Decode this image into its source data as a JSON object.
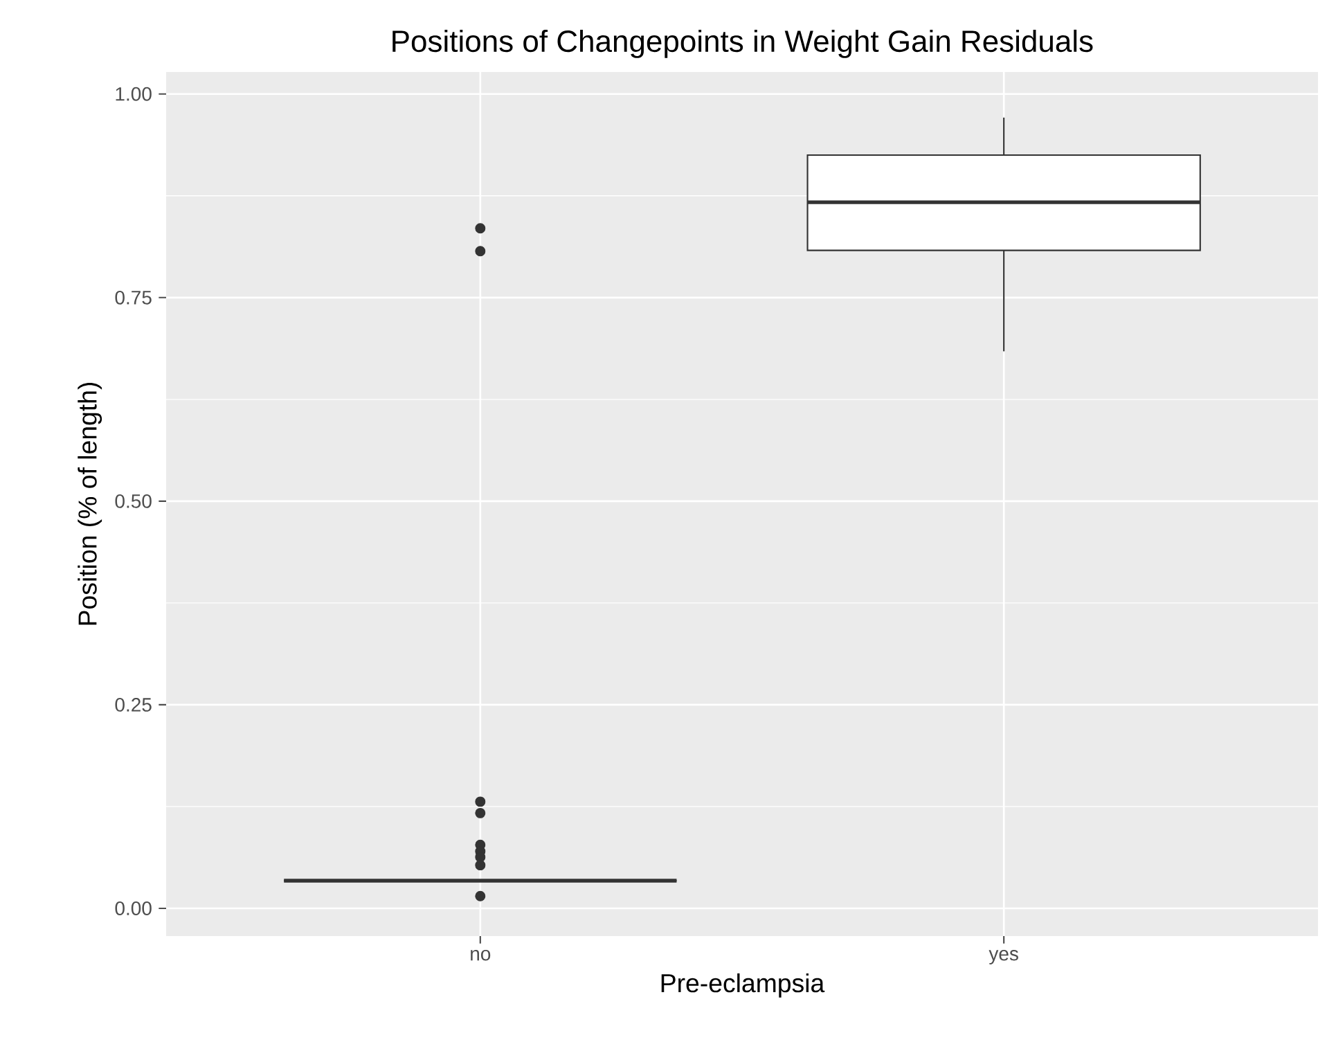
{
  "chart_data": {
    "type": "box",
    "title": "Positions of Changepoints in Weight Gain Residuals",
    "xlabel": "Pre-eclampsia",
    "ylabel": "Position (% of length)",
    "categories": [
      "no",
      "yes"
    ],
    "boxes": [
      {
        "low": 0.034,
        "q1": 0.034,
        "median": 0.034,
        "q3": 0.034,
        "high": 0.034,
        "outliers": [
          0.835,
          0.807,
          0.131,
          0.117,
          0.078,
          0.07,
          0.063,
          0.053,
          0.015
        ]
      },
      {
        "low": 0.684,
        "q1": 0.808,
        "median": 0.867,
        "q3": 0.925,
        "high": 0.971
      }
    ],
    "ylim": [
      -0.034,
      1.027
    ],
    "yticks": [
      {
        "value": 0,
        "label": "0.00"
      },
      {
        "value": 0.25,
        "label": "0.25"
      },
      {
        "value": 0.5,
        "label": "0.50"
      },
      {
        "value": 0.75,
        "label": "0.75"
      },
      {
        "value": 1,
        "label": "1.00"
      }
    ],
    "grid": true
  }
}
